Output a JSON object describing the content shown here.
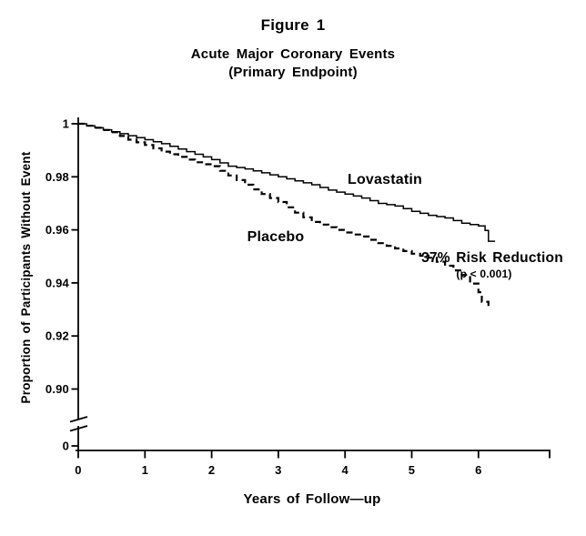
{
  "figure": {
    "title": "Figure 1",
    "subtitle": "Acute Major Coronary Events",
    "subtitle2": "(Primary Endpoint)"
  },
  "axes": {
    "y_label": "Proportion of Participants Without Event",
    "x_label": "Years of Follow—up",
    "y_ticks": [
      "1",
      "0.98",
      "0.96",
      "0.94",
      "0.92",
      "0.90",
      "0"
    ],
    "x_ticks": [
      "0",
      "1",
      "2",
      "3",
      "4",
      "5",
      "6"
    ]
  },
  "annotations": {
    "lovastatin_label": "Lovastatin",
    "placebo_label": "Placebo",
    "risk_reduction": "37% Risk Reduction",
    "p_value": "(p < 0.001)"
  },
  "colors": {
    "line": "#000000",
    "background": "#ffffff"
  },
  "chart_data": {
    "type": "line",
    "subtype": "kaplan-meier-step",
    "title": "Figure 1 — Acute Major Coronary Events (Primary Endpoint)",
    "xlabel": "Years of Follow—up",
    "ylabel": "Proportion of Participants Without Event",
    "xlim": [
      0,
      7.1
    ],
    "ylim_displayed": [
      0.89,
      1.005
    ],
    "y_axis_break_to_zero": true,
    "grid": false,
    "x_ticks": [
      0,
      1,
      2,
      3,
      4,
      5,
      6
    ],
    "y_ticks": [
      1,
      0.98,
      0.96,
      0.94,
      0.92,
      0.9,
      0
    ],
    "annotation": "37% Risk Reduction (p < 0.001)",
    "series": [
      {
        "name": "Lovastatin",
        "style": "solid",
        "points": [
          [
            0,
            1.0
          ],
          [
            0.25,
            0.9985
          ],
          [
            0.5,
            0.997
          ],
          [
            0.75,
            0.9955
          ],
          [
            1,
            0.994
          ],
          [
            1.25,
            0.9925
          ],
          [
            1.5,
            0.9905
          ],
          [
            1.75,
            0.9885
          ],
          [
            2,
            0.9865
          ],
          [
            2.25,
            0.984
          ],
          [
            2.5,
            0.983
          ],
          [
            2.75,
            0.9815
          ],
          [
            3,
            0.98
          ],
          [
            3.25,
            0.9785
          ],
          [
            3.5,
            0.977
          ],
          [
            3.75,
            0.975
          ],
          [
            4,
            0.9735
          ],
          [
            4.25,
            0.972
          ],
          [
            4.5,
            0.97
          ],
          [
            4.75,
            0.969
          ],
          [
            5,
            0.967
          ],
          [
            5.25,
            0.9655
          ],
          [
            5.5,
            0.9645
          ],
          [
            5.75,
            0.9625
          ],
          [
            6,
            0.9615
          ],
          [
            6.1,
            0.9598
          ],
          [
            6.15,
            0.9557
          ],
          [
            6.25,
            0.9557
          ]
        ]
      },
      {
        "name": "Placebo",
        "style": "dashed",
        "points": [
          [
            0,
            1.0
          ],
          [
            0.25,
            0.9985
          ],
          [
            0.5,
            0.9968
          ],
          [
            0.75,
            0.994
          ],
          [
            1,
            0.992
          ],
          [
            1.25,
            0.9895
          ],
          [
            1.5,
            0.9875
          ],
          [
            1.75,
            0.9855
          ],
          [
            2,
            0.984
          ],
          [
            2.25,
            0.9805
          ],
          [
            2.5,
            0.977
          ],
          [
            2.75,
            0.9735
          ],
          [
            3,
            0.9705
          ],
          [
            3.25,
            0.9665
          ],
          [
            3.5,
            0.963
          ],
          [
            3.75,
            0.961
          ],
          [
            4,
            0.959
          ],
          [
            4.25,
            0.9575
          ],
          [
            4.5,
            0.955
          ],
          [
            4.75,
            0.953
          ],
          [
            5,
            0.951
          ],
          [
            5.25,
            0.9495
          ],
          [
            5.5,
            0.9465
          ],
          [
            5.75,
            0.943
          ],
          [
            6,
            0.9365
          ],
          [
            6.05,
            0.9329
          ],
          [
            6.15,
            0.931
          ]
        ]
      }
    ]
  }
}
